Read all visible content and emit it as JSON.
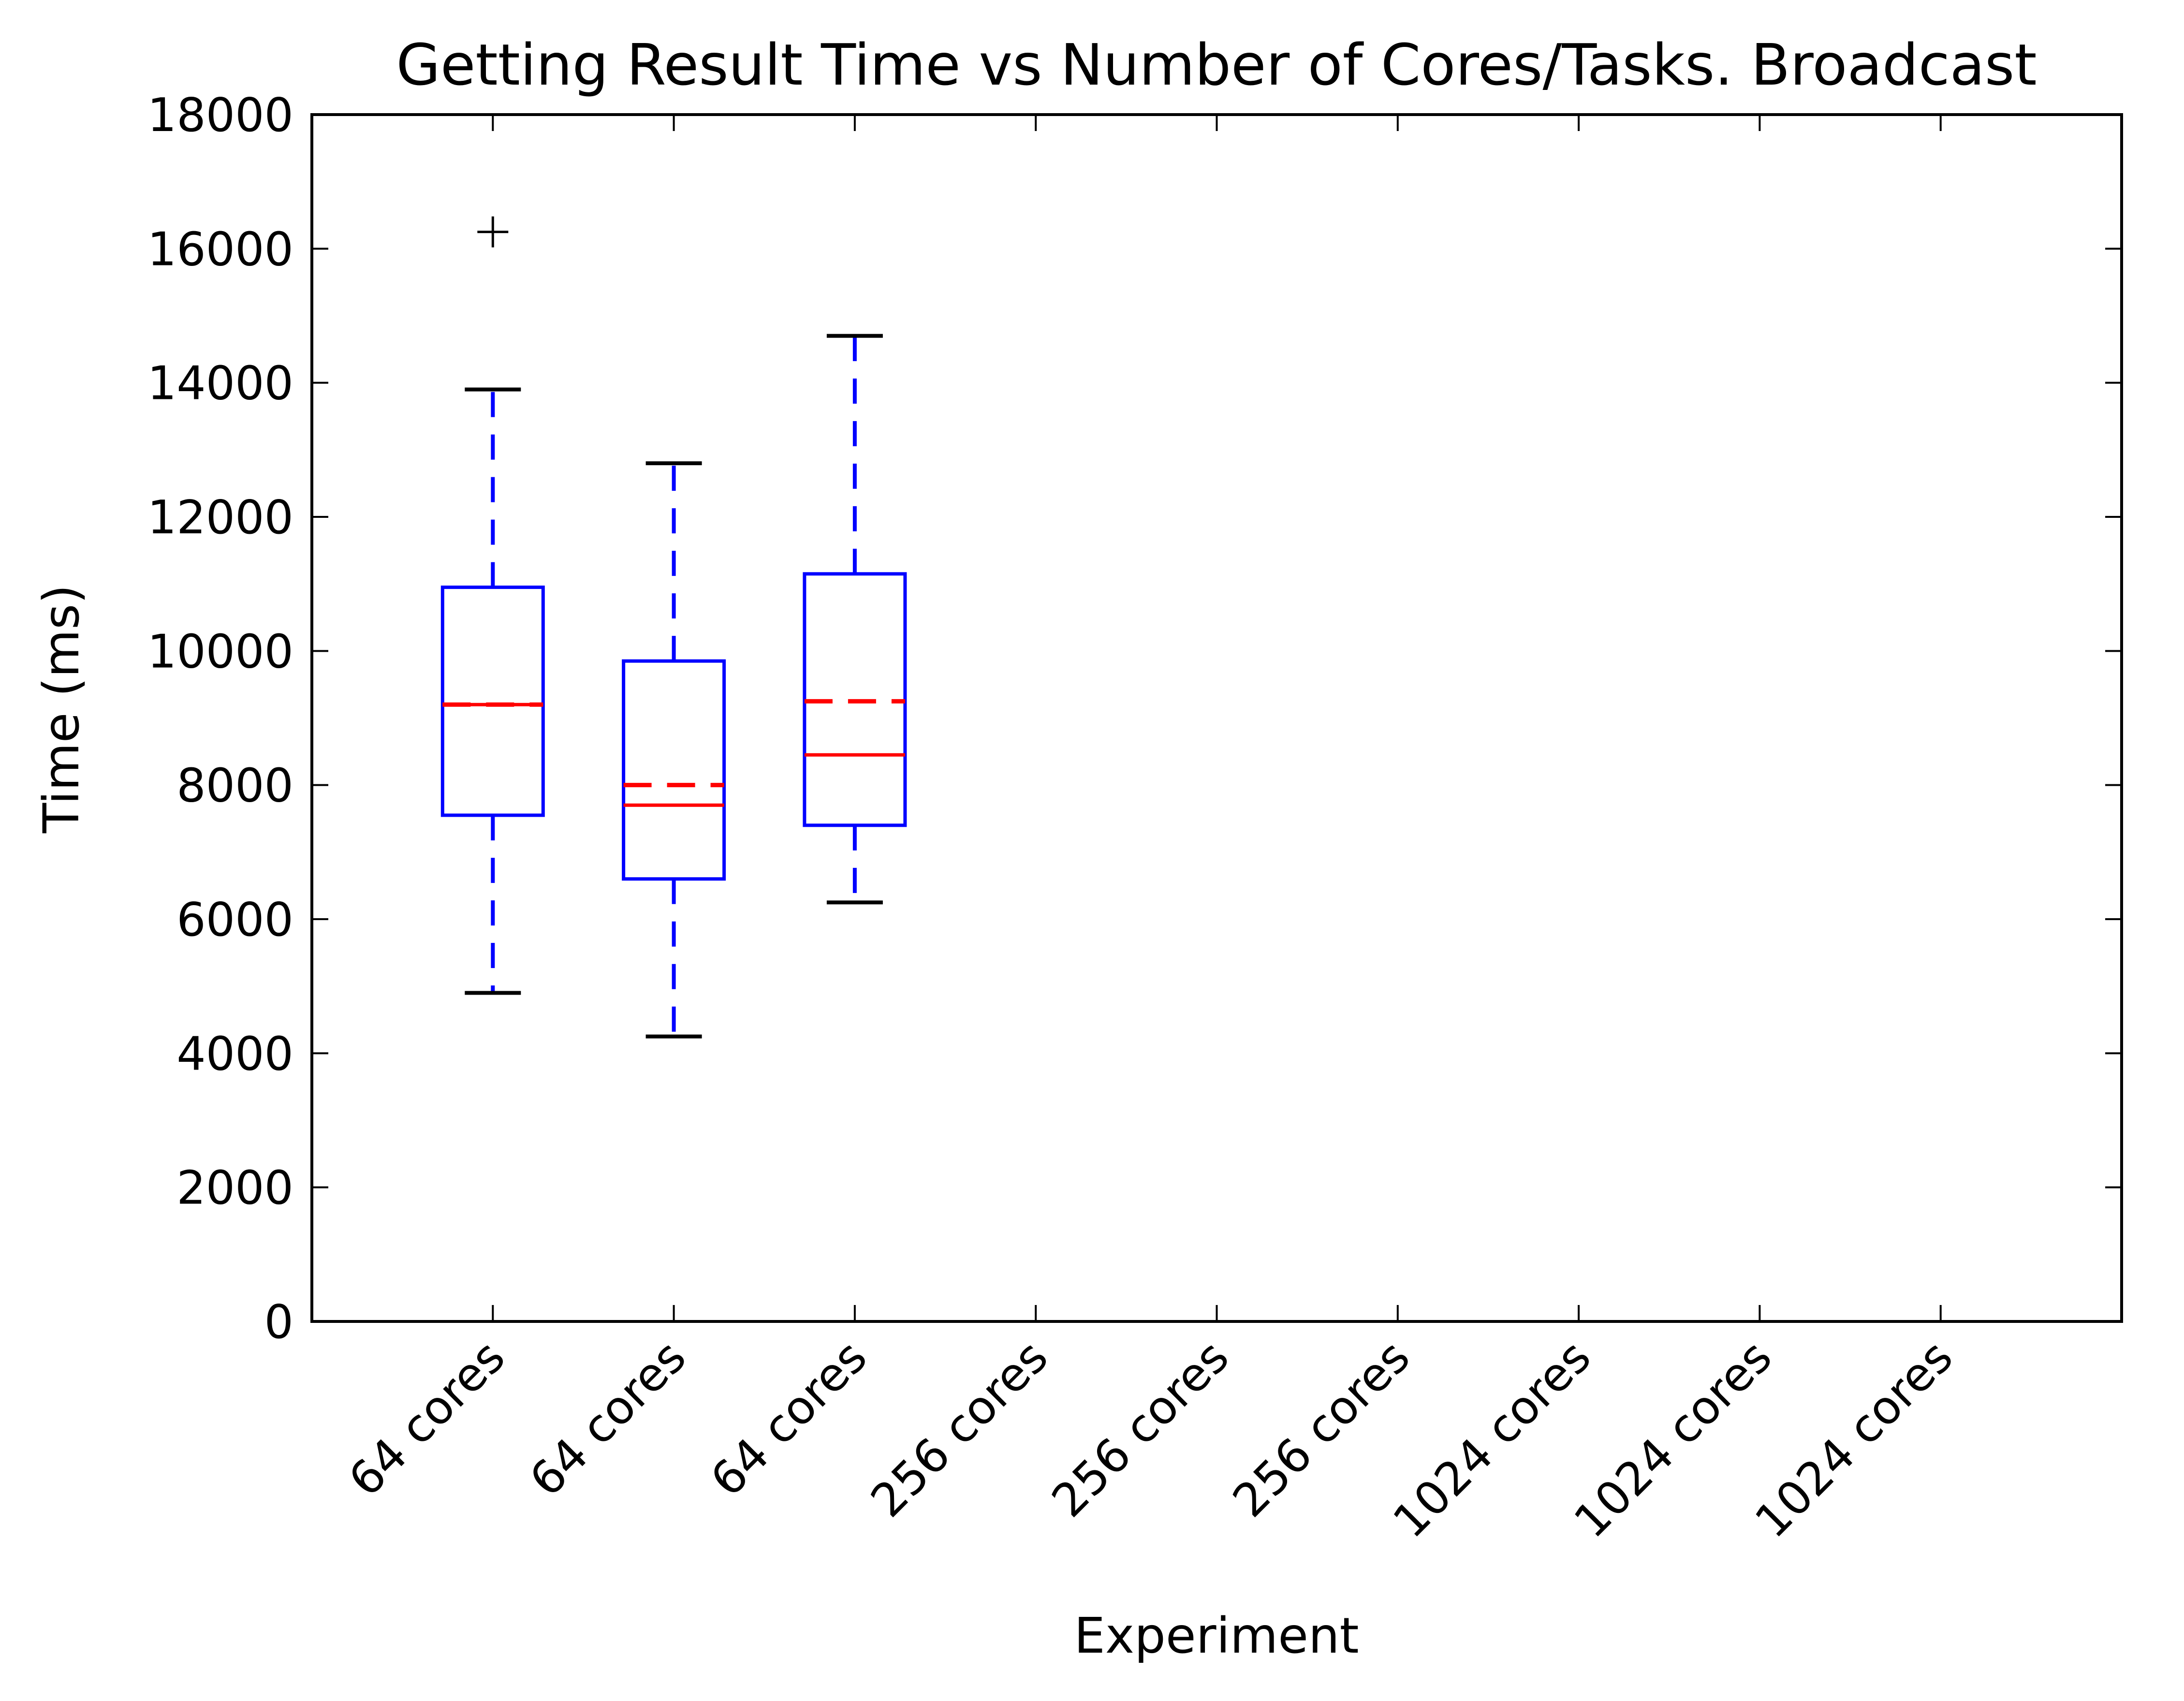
{
  "chart_data": {
    "type": "boxplot",
    "title": "Getting Result Time vs Number of Cores/Tasks. Broadcast",
    "xlabel": "Experiment",
    "ylabel": "Time (ms)",
    "ylim": [
      0,
      18000
    ],
    "yticks": [
      0,
      2000,
      4000,
      6000,
      8000,
      10000,
      12000,
      14000,
      16000,
      18000
    ],
    "categories": [
      "64 cores",
      "64 cores",
      "64 cores",
      "256 cores",
      "256 cores",
      "256 cores",
      "1024 cores",
      "1024 cores",
      "1024 cores"
    ],
    "grid": false,
    "boxes": [
      {
        "category_index": 0,
        "whisker_low": 4900,
        "q1": 7550,
        "median": 9200,
        "mean": 9200,
        "q3": 10950,
        "whisker_high": 13900,
        "outliers": [
          16250
        ]
      },
      {
        "category_index": 1,
        "whisker_low": 4250,
        "q1": 6600,
        "median": 7700,
        "mean": 8000,
        "q3": 9850,
        "whisker_high": 12800,
        "outliers": []
      },
      {
        "category_index": 2,
        "whisker_low": 6250,
        "q1": 7400,
        "median": 8450,
        "mean": 9250,
        "q3": 11150,
        "whisker_high": 14700,
        "outliers": []
      }
    ],
    "colors": {
      "box": "#0000ff",
      "median": "#ff0000",
      "mean": "#ff0000",
      "whisker_cap": "#000000",
      "outlier": "#000000",
      "axes": "#000000"
    }
  }
}
